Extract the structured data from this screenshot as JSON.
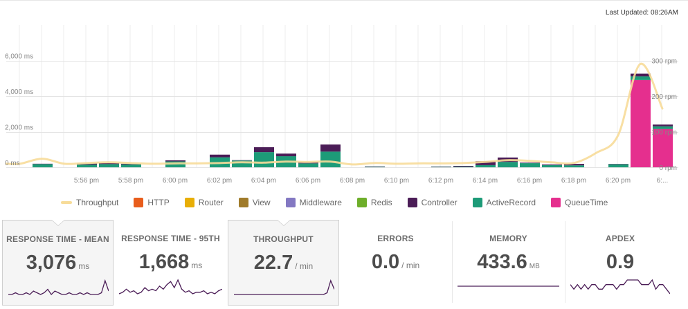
{
  "header": {
    "last_updated": "Last Updated: 08:26AM"
  },
  "colors": {
    "throughput": "#f7dc99",
    "http": "#e85d1c",
    "router": "#e8ae06",
    "view": "#a07b2a",
    "middleware": "#8378c2",
    "redis": "#6eae2a",
    "controller": "#4b1d57",
    "activerecord": "#1d9b78",
    "queuetime": "#e52f8e",
    "sparkline": "#4b1d57"
  },
  "chart_data": {
    "type": "bar",
    "stacked": true,
    "title": "",
    "y_left": {
      "label": "ms",
      "range": [
        0,
        8000
      ],
      "ticks": [
        "6,000 ms",
        "4,000 ms",
        "2,000 ms",
        "0 ms"
      ],
      "tick_values": [
        6000,
        4000,
        2000,
        0
      ]
    },
    "y_right": {
      "label": "rpm",
      "range": [
        0,
        400
      ],
      "ticks": [
        "300 rpm",
        "200 rpm",
        "100 rpm",
        "0 rpm"
      ],
      "tick_values": [
        300,
        200,
        100,
        0
      ]
    },
    "x_ticks": [
      "5:56 pm",
      "5:58 pm",
      "6:00 pm",
      "6:02 pm",
      "6:04 pm",
      "6:06 pm",
      "6:08 pm",
      "6:10 pm",
      "6:12 pm",
      "6:14 pm",
      "6:16 pm",
      "6:18 pm",
      "6:20 pm",
      "6:..."
    ],
    "x_tick_index": [
      3,
      5,
      7,
      9,
      11,
      13,
      15,
      17,
      19,
      21,
      23,
      25,
      27,
      29
    ],
    "series": [
      {
        "name": "QueueTime",
        "color_key": "queuetime",
        "values": [
          0,
          0,
          0,
          0,
          0,
          0,
          0,
          0,
          0,
          0,
          0,
          0,
          0,
          0,
          0,
          0,
          0,
          0,
          0,
          0,
          0,
          0,
          0,
          0,
          0,
          0,
          0,
          0,
          4900,
          2150
        ]
      },
      {
        "name": "ActiveRecord",
        "color_key": "activerecord",
        "values": [
          0,
          180,
          0,
          150,
          180,
          160,
          0,
          330,
          0,
          560,
          380,
          850,
          620,
          220,
          880,
          0,
          30,
          0,
          0,
          25,
          35,
          120,
          300,
          230,
          120,
          110,
          0,
          170,
          210,
          150
        ]
      },
      {
        "name": "Redis",
        "color_key": "redis",
        "values": [
          0,
          0,
          0,
          0,
          0,
          0,
          0,
          0,
          0,
          0,
          0,
          0,
          0,
          0,
          0,
          0,
          0,
          0,
          0,
          0,
          0,
          0,
          0,
          0,
          0,
          0,
          0,
          0,
          0,
          0
        ]
      },
      {
        "name": "Middleware",
        "color_key": "middleware",
        "values": [
          0,
          0,
          0,
          0,
          0,
          0,
          0,
          0,
          0,
          0,
          0,
          0,
          0,
          0,
          0,
          0,
          0,
          0,
          0,
          0,
          0,
          0,
          0,
          0,
          0,
          0,
          0,
          0,
          0,
          0
        ]
      },
      {
        "name": "View",
        "color_key": "view",
        "values": [
          0,
          0,
          0,
          0,
          0,
          0,
          0,
          0,
          0,
          0,
          0,
          0,
          0,
          0,
          0,
          0,
          0,
          0,
          0,
          0,
          0,
          0,
          0,
          0,
          0,
          0,
          0,
          0,
          0,
          0
        ]
      },
      {
        "name": "Controller",
        "color_key": "controller",
        "values": [
          0,
          20,
          0,
          60,
          60,
          40,
          0,
          60,
          0,
          150,
          20,
          280,
          150,
          50,
          400,
          0,
          20,
          0,
          0,
          20,
          40,
          220,
          250,
          30,
          40,
          80,
          0,
          20,
          150,
          100
        ]
      },
      {
        "name": "Router",
        "color_key": "router",
        "values": [
          0,
          0,
          0,
          0,
          0,
          0,
          0,
          0,
          0,
          0,
          0,
          0,
          0,
          0,
          0,
          0,
          0,
          0,
          0,
          0,
          0,
          0,
          0,
          0,
          0,
          0,
          0,
          0,
          0,
          0
        ]
      },
      {
        "name": "HTTP",
        "color_key": "http",
        "values": [
          0,
          0,
          0,
          0,
          0,
          0,
          0,
          0,
          0,
          0,
          0,
          0,
          0,
          0,
          0,
          0,
          0,
          0,
          0,
          0,
          0,
          0,
          0,
          0,
          0,
          0,
          0,
          0,
          0,
          0
        ]
      }
    ],
    "throughput": [
      10,
      24,
      10,
      12,
      14,
      12,
      10,
      11,
      11,
      12,
      14,
      13,
      16,
      15,
      16,
      8,
      12,
      10,
      11,
      11,
      12,
      15,
      20,
      18,
      14,
      12,
      40,
      90,
      290,
      165
    ],
    "legend": [
      "Throughput",
      "HTTP",
      "Router",
      "View",
      "Middleware",
      "Redis",
      "Controller",
      "ActiveRecord",
      "QueueTime"
    ],
    "legend_position": "bottom"
  },
  "legend": {
    "items": [
      {
        "label": "Throughput",
        "color_key": "throughput",
        "shape": "line"
      },
      {
        "label": "HTTP",
        "color_key": "http",
        "shape": "box"
      },
      {
        "label": "Router",
        "color_key": "router",
        "shape": "box"
      },
      {
        "label": "View",
        "color_key": "view",
        "shape": "box"
      },
      {
        "label": "Middleware",
        "color_key": "middleware",
        "shape": "box"
      },
      {
        "label": "Redis",
        "color_key": "redis",
        "shape": "box"
      },
      {
        "label": "Controller",
        "color_key": "controller",
        "shape": "box"
      },
      {
        "label": "ActiveRecord",
        "color_key": "activerecord",
        "shape": "box"
      },
      {
        "label": "QueueTime",
        "color_key": "queuetime",
        "shape": "box"
      }
    ]
  },
  "metrics": [
    {
      "key": "response-time-mean",
      "title": "RESPONSE TIME - MEAN",
      "value": "3,076",
      "unit": "ms",
      "active": true,
      "spark": [
        1,
        1,
        2,
        1,
        1,
        2,
        1,
        3,
        2,
        1,
        2,
        4,
        1,
        3,
        2,
        1,
        1,
        2,
        1,
        1,
        2,
        1,
        2,
        1,
        1,
        1,
        2,
        9,
        3
      ]
    },
    {
      "key": "response-time-95th",
      "title": "RESPONSE TIME - 95TH",
      "value": "1,668",
      "unit": "ms",
      "active": false,
      "spark": [
        1,
        2,
        4,
        2,
        3,
        1,
        2,
        5,
        3,
        4,
        3,
        6,
        4,
        7,
        9,
        5,
        10,
        4,
        2,
        3,
        1,
        2,
        2,
        3,
        1,
        2,
        1,
        3,
        4
      ]
    },
    {
      "key": "throughput",
      "title": "THROUGHPUT",
      "value": "22.7",
      "unit": "/ min",
      "active": true,
      "spark": [
        1,
        1,
        1,
        1,
        1,
        1,
        1,
        1,
        1,
        1,
        1,
        1,
        1,
        1,
        1,
        1,
        1,
        1,
        1,
        1,
        1,
        1,
        1,
        1,
        1,
        1,
        2,
        9,
        4
      ]
    },
    {
      "key": "errors",
      "title": "ERRORS",
      "value": "0.0",
      "unit": "/ min",
      "active": false,
      "spark": []
    },
    {
      "key": "memory",
      "title": "MEMORY",
      "value": "433.6",
      "unit": "MB",
      "active": false,
      "spark": [
        5,
        5,
        5,
        5,
        5,
        5,
        5,
        5,
        5,
        5,
        5,
        5,
        5,
        5,
        5,
        5,
        5,
        5,
        5,
        5,
        5,
        5,
        5,
        5,
        5,
        5,
        5,
        5,
        5
      ]
    },
    {
      "key": "apdex",
      "title": "APDEX",
      "value": "0.9",
      "unit": "",
      "active": false,
      "spark": [
        7,
        6,
        7,
        6,
        7,
        6,
        7,
        7,
        6,
        6,
        7,
        7,
        7,
        6,
        7,
        7,
        8,
        8,
        8,
        8,
        7,
        7,
        7,
        8,
        6,
        7,
        7,
        6,
        5
      ]
    }
  ]
}
